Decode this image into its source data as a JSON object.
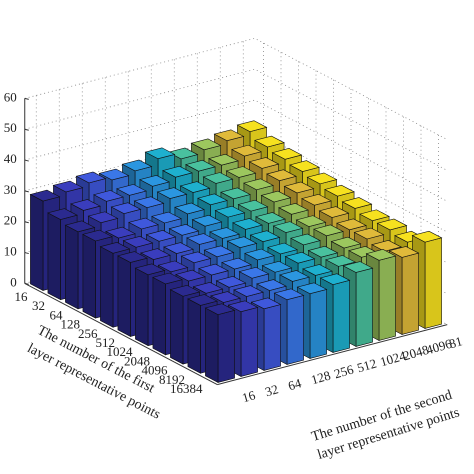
{
  "chart_data": {
    "type": "bar3d",
    "xlabel": [
      "The number of the first",
      "layer representative points"
    ],
    "ylabel": [
      "The number of the second",
      "layer representative points"
    ],
    "categories": [
      "16",
      "32",
      "64",
      "128",
      "256",
      "512",
      "1024",
      "2048",
      "4096",
      "8192",
      "16384"
    ],
    "series": [
      {
        "name": "16",
        "color": "#2b2a8f",
        "values": [
          29,
          26,
          25,
          25,
          24,
          24,
          23,
          23,
          22,
          22,
          22
        ]
      },
      {
        "name": "32",
        "color": "#3a3dbd",
        "values": [
          30,
          27,
          26,
          24,
          24,
          23,
          22,
          22,
          21,
          21,
          21
        ]
      },
      {
        "name": "64",
        "color": "#3f58dc",
        "values": [
          31,
          28,
          27,
          25,
          24,
          23,
          23,
          22,
          21,
          21,
          20
        ]
      },
      {
        "name": "128",
        "color": "#3a77e8",
        "values": [
          30,
          28,
          27,
          25,
          24,
          24,
          23,
          22,
          22,
          21,
          21
        ]
      },
      {
        "name": "256",
        "color": "#2b96e0",
        "values": [
          31,
          29,
          28,
          26,
          25,
          24,
          24,
          23,
          22,
          22,
          21
        ]
      },
      {
        "name": "512",
        "color": "#1eb0cf",
        "values": [
          33,
          30,
          28,
          27,
          26,
          25,
          24,
          23,
          23,
          22,
          22
        ]
      },
      {
        "name": "1024",
        "color": "#49c19e",
        "values": [
          31,
          30,
          29,
          27,
          26,
          25,
          25,
          24,
          23,
          23,
          24
        ]
      },
      {
        "name": "2048",
        "color": "#9cc75e",
        "values": [
          32,
          30,
          29,
          28,
          27,
          26,
          25,
          25,
          24,
          24,
          26
        ]
      },
      {
        "name": "4096",
        "color": "#e0ba3a",
        "values": [
          33,
          31,
          30,
          29,
          28,
          27,
          26,
          25,
          25,
          24,
          25
        ]
      },
      {
        "name": "81",
        "color": "#f6e11f",
        "values": [
          34,
          32,
          31,
          30,
          29,
          28,
          27,
          26,
          26,
          25,
          28
        ]
      }
    ],
    "zlim": [
      0,
      60
    ],
    "zticks": [
      0,
      10,
      20,
      30,
      40,
      50,
      60
    ],
    "grid": true
  }
}
